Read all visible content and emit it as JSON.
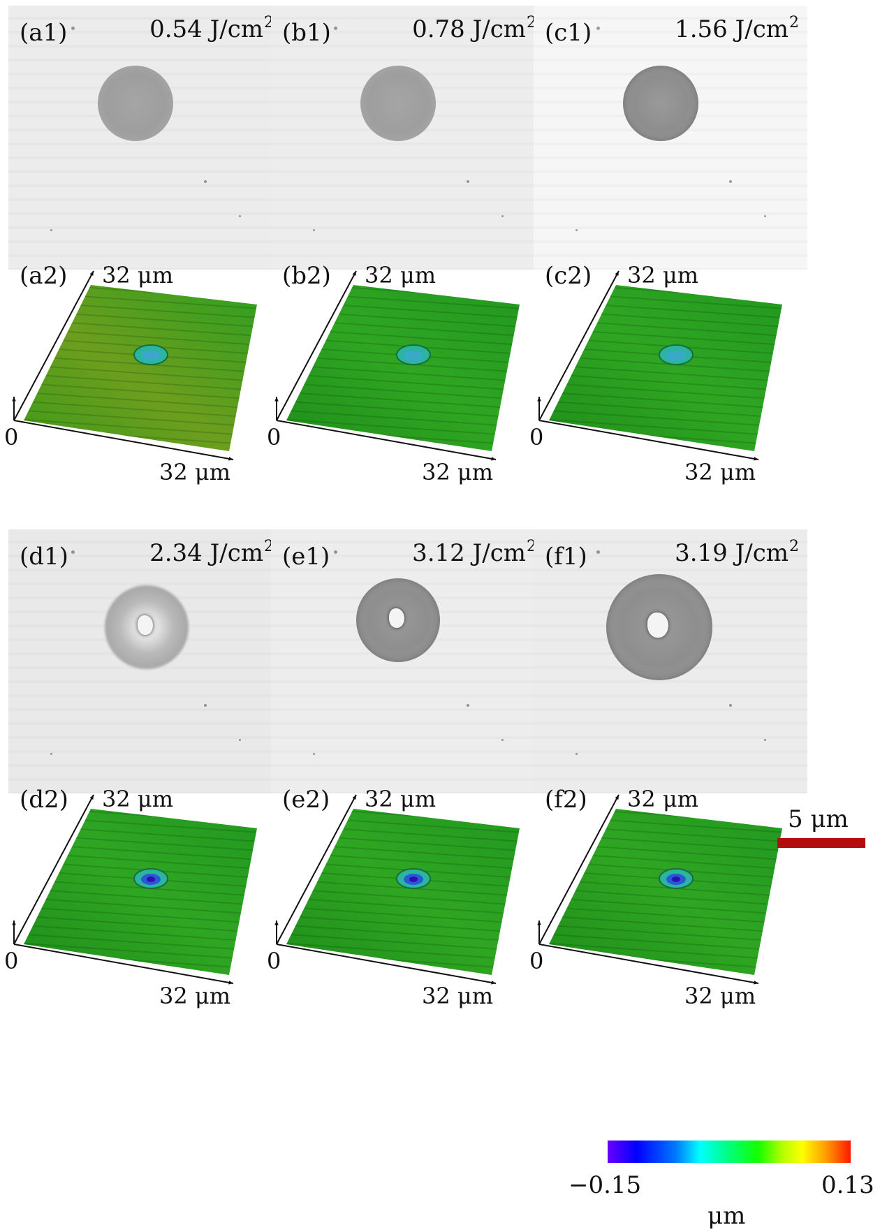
{
  "figure": {
    "panels_top": [
      {
        "id": "a",
        "label1": "(a1)",
        "label2": "(a2)",
        "fluence": "0.54 J/cm",
        "exp": "2",
        "shade": "#ececec",
        "crater": "light",
        "hole": false,
        "tint": "yellow"
      },
      {
        "id": "b",
        "label1": "(b1)",
        "label2": "(b2)",
        "fluence": "0.78 J/cm",
        "exp": "2",
        "shade": "#ededed",
        "crater": "light",
        "hole": false,
        "tint": "green"
      },
      {
        "id": "c",
        "label1": "(c1)",
        "label2": "(c2)",
        "fluence": "1.56 J/cm",
        "exp": "2",
        "shade": "#f6f6f6",
        "crater": "dark",
        "hole": false,
        "tint": "green"
      }
    ],
    "panels_bottom": [
      {
        "id": "d",
        "label1": "(d1)",
        "label2": "(d2)",
        "fluence": "2.34 J/cm",
        "exp": "2",
        "shade": "#e9e9e9",
        "crater": "ring",
        "hole": true,
        "tint": "green"
      },
      {
        "id": "e",
        "label1": "(e1)",
        "label2": "(e2)",
        "fluence": "3.12 J/cm",
        "exp": "2",
        "shade": "#ededed",
        "crater": "dark",
        "hole": true,
        "tint": "green"
      },
      {
        "id": "f",
        "label1": "(f1)",
        "label2": "(f2)",
        "fluence": "3.19 J/cm",
        "exp": "2",
        "shade": "#ececec",
        "crater": "dark",
        "hole": true,
        "tint": "green"
      }
    ],
    "axis": {
      "top_label": "32 μm",
      "right_label": "32 μm",
      "origin": "0"
    },
    "scale_bar": {
      "label": "5 μm",
      "color": "#b50d0d"
    },
    "colorbar": {
      "min": "−0.15",
      "max": "0.13",
      "unit": "μm"
    }
  }
}
